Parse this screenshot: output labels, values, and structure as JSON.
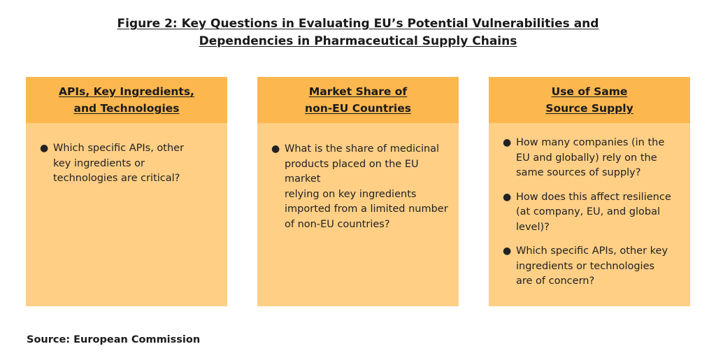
{
  "title": {
    "line1": "Figure 2: Key Questions in Evaluating EU’s Potential Vulnerabilities and",
    "line2": "Dependencies in Pharmaceutical Supply Chains"
  },
  "columns": [
    {
      "header": [
        "APIs, Key Ingredients,",
        "and Technologies"
      ],
      "items": [
        [
          "Which specific APIs, other",
          "key ingredients or",
          "technologies are critical?"
        ]
      ]
    },
    {
      "header": [
        "Market Share of",
        "non-EU Countries"
      ],
      "items": [
        [
          "What is the share of medicinal",
          "products placed on the EU market",
          "relying on key ingredients",
          "imported from a limited number",
          "of non-EU countries?"
        ]
      ]
    },
    {
      "header": [
        "Use of Same",
        "Source Supply"
      ],
      "items": [
        [
          "How many companies (in the",
          "EU and globally) rely on the",
          "same sources of supply?"
        ],
        [
          "How does this affect resilience",
          "(at company, EU, and global",
          "level)?"
        ],
        [
          "Which specific APIs, other key",
          "ingredients or technologies",
          "are of concern?"
        ]
      ]
    }
  ],
  "source": "Source: European Commission",
  "colors": {
    "header_fill": "#fcb74f",
    "body_fill": "#fecf85"
  }
}
